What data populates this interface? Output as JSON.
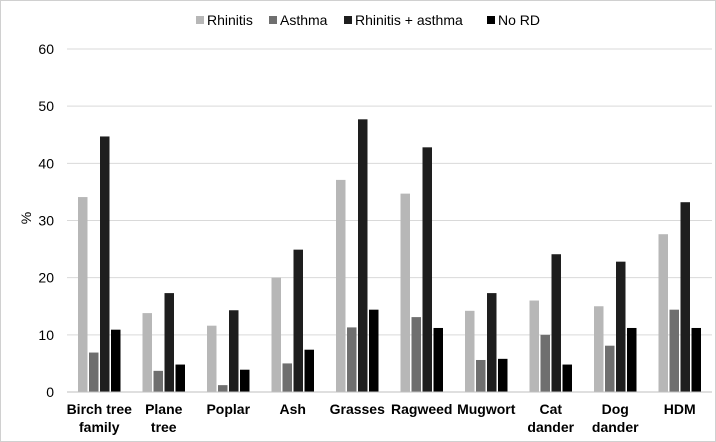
{
  "chart_data": {
    "type": "bar",
    "categories": [
      [
        "Birch tree",
        "family"
      ],
      [
        "Plane",
        "tree"
      ],
      [
        "Poplar"
      ],
      [
        "Ash"
      ],
      [
        "Grasses"
      ],
      [
        "Ragweed"
      ],
      [
        "Mugwort"
      ],
      [
        "Cat",
        "dander"
      ],
      [
        "Dog",
        "dander"
      ],
      [
        "HDM"
      ]
    ],
    "series": [
      {
        "name": "Rhinitis",
        "color": "#b7b7b7",
        "values": [
          34.1,
          13.8,
          11.6,
          20.0,
          37.1,
          34.7,
          14.2,
          16.0,
          15.0,
          27.6
        ]
      },
      {
        "name": "Asthma",
        "color": "#6f6f6f",
        "values": [
          6.9,
          3.7,
          1.2,
          5.0,
          11.3,
          13.1,
          5.6,
          10.0,
          8.1,
          14.4
        ]
      },
      {
        "name": "Rhinitis + asthma",
        "color": "#1e1e1e",
        "values": [
          44.7,
          17.3,
          14.3,
          24.9,
          47.7,
          42.8,
          17.3,
          24.1,
          22.8,
          33.2
        ]
      },
      {
        "name": "No RD",
        "color": "#000000",
        "values": [
          10.9,
          4.8,
          3.9,
          7.4,
          14.4,
          11.2,
          5.8,
          4.8,
          11.2,
          11.2
        ]
      }
    ],
    "ylabel": "%",
    "xlabel": "",
    "ylim": [
      0,
      60
    ],
    "yticks": [
      0,
      10,
      20,
      30,
      40,
      50,
      60
    ],
    "grid": true,
    "legend_position": "top"
  }
}
